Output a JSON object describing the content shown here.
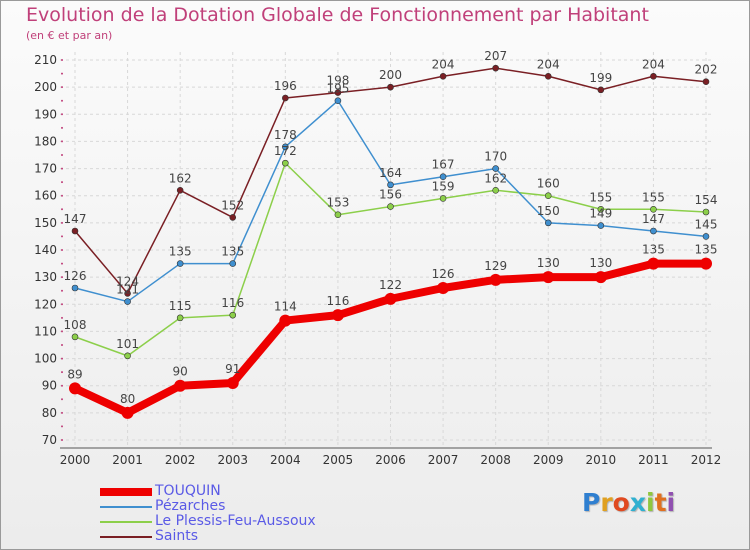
{
  "chart_data": {
    "type": "line",
    "title": "Evolution de la Dotation Globale de Fonctionnement par Habitant",
    "subtitle": "(en € et par an)",
    "xlabel": "",
    "ylabel": "",
    "x": [
      "2000",
      "2001",
      "2002",
      "2003",
      "2004",
      "2005",
      "2006",
      "2007",
      "2008",
      "2009",
      "2010",
      "2011",
      "2012"
    ],
    "ylim": [
      70,
      210
    ],
    "yticks": [
      "70",
      "80",
      "90",
      "100",
      "110",
      "120",
      "130",
      "140",
      "150",
      "160",
      "170",
      "180",
      "190",
      "200",
      "210"
    ],
    "grid": true,
    "legend_position": "bottom-left",
    "series": [
      {
        "name": "TOUQUIN",
        "color": "#ee0000",
        "values": [
          89,
          80,
          90,
          91,
          114,
          116,
          122,
          126,
          129,
          130,
          130,
          135,
          135
        ],
        "labels": [
          "89",
          "80",
          "90",
          "91",
          "114",
          "116",
          "122",
          "126",
          "129",
          "130",
          "130",
          "135",
          "135"
        ]
      },
      {
        "name": "Pézarches",
        "color": "#3f8fcf",
        "values": [
          126,
          121,
          135,
          135,
          178,
          195,
          164,
          167,
          170,
          150,
          149,
          147,
          145
        ],
        "labels": [
          "126",
          "121",
          "135",
          "135",
          "178",
          "195",
          "164",
          "167",
          "170",
          "150",
          "149",
          "147",
          "145"
        ]
      },
      {
        "name": "Le Plessis-Feu-Aussoux",
        "color": "#8ccf4a",
        "values": [
          108,
          101,
          115,
          116,
          172,
          153,
          156,
          159,
          162,
          160,
          155,
          155,
          154
        ],
        "labels": [
          "108",
          "101",
          "115",
          "116",
          "172",
          "153",
          "156",
          "159",
          "162",
          "160",
          "155",
          "155",
          "154"
        ]
      },
      {
        "name": "Saints",
        "color": "#7a1f24",
        "values": [
          147,
          124,
          162,
          152,
          196,
          198,
          200,
          204,
          207,
          204,
          199,
          204,
          202
        ],
        "labels": [
          "147",
          "124",
          "162",
          "152",
          "196",
          "198",
          "200",
          "204",
          "207",
          "204",
          "199",
          "204",
          "202"
        ]
      }
    ]
  },
  "logo": {
    "letters": [
      "P",
      "r",
      "o",
      "x",
      "i",
      "t",
      "i"
    ],
    "colors": [
      "#2f7fd0",
      "#e0a020",
      "#e04a20",
      "#30b0d0",
      "#8fc73e",
      "#e07020",
      "#9050b0"
    ]
  }
}
